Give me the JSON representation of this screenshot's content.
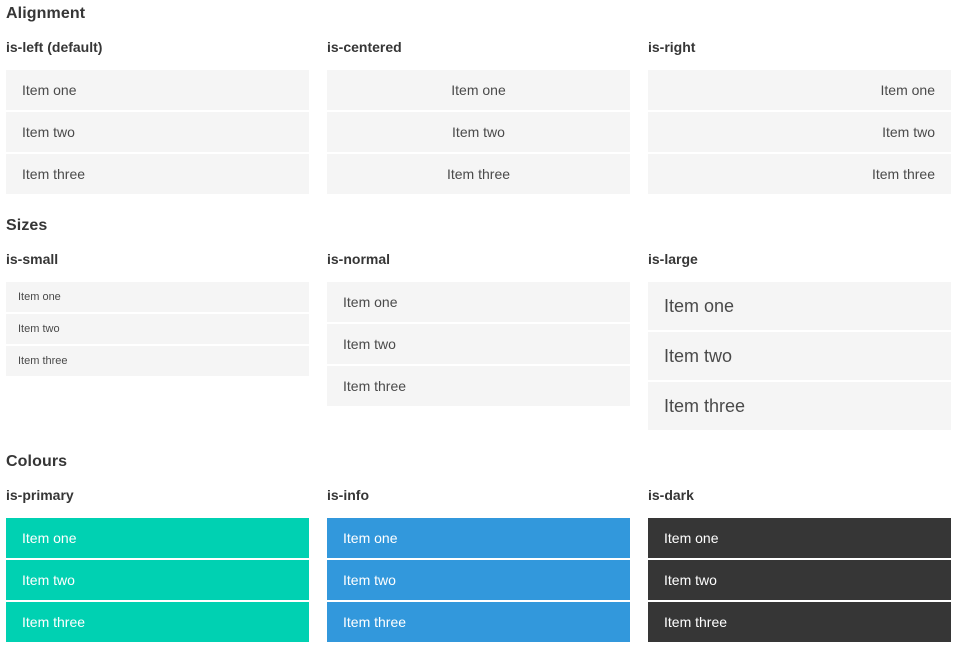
{
  "colors": {
    "page_bg": "#ffffff",
    "item_bg": "#f5f5f5",
    "item_text": "#4a4a4a",
    "heading_text": "#363636",
    "primary": "#00d1b2",
    "info": "#3298dc",
    "dark": "#363636",
    "colored_text": "#ffffff"
  },
  "sections": [
    {
      "title": "Alignment",
      "groups": [
        {
          "label": "is-left (default)",
          "variant": "left",
          "items": [
            "Item one",
            "Item two",
            "Item three"
          ]
        },
        {
          "label": "is-centered",
          "variant": "centered",
          "items": [
            "Item one",
            "Item two",
            "Item three"
          ]
        },
        {
          "label": "is-right",
          "variant": "right",
          "items": [
            "Item one",
            "Item two",
            "Item three"
          ]
        }
      ]
    },
    {
      "title": "Sizes",
      "groups": [
        {
          "label": "is-small",
          "variant": "small",
          "items": [
            "Item one",
            "Item two",
            "Item three"
          ]
        },
        {
          "label": "is-normal",
          "variant": "normal",
          "items": [
            "Item one",
            "Item two",
            "Item three"
          ]
        },
        {
          "label": "is-large",
          "variant": "large",
          "items": [
            "Item one",
            "Item two",
            "Item three"
          ]
        }
      ]
    },
    {
      "title": "Colours",
      "groups": [
        {
          "label": "is-primary",
          "variant": "primary",
          "items": [
            "Item one",
            "Item two",
            "Item three"
          ]
        },
        {
          "label": "is-info",
          "variant": "info",
          "items": [
            "Item one",
            "Item two",
            "Item three"
          ]
        },
        {
          "label": "is-dark",
          "variant": "dark",
          "items": [
            "Item one",
            "Item two",
            "Item three"
          ]
        }
      ]
    }
  ]
}
